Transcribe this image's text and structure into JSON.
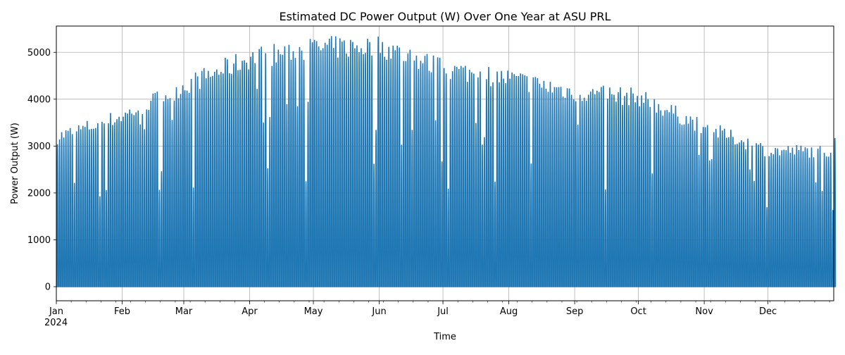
{
  "chart_data": {
    "type": "area",
    "title": "Estimated DC Power Output (W) Over One Year at ASU PRL",
    "xlabel": "Time",
    "ylabel": "Power Output (W)",
    "x_range": [
      "2024-01-01",
      "2024-12-31"
    ],
    "ylim": [
      -300,
      5560
    ],
    "grid": true,
    "color": "#1f77b4",
    "x_tick_labels": [
      "Jan",
      "Feb",
      "Mar",
      "Apr",
      "May",
      "Jun",
      "Jul",
      "Aug",
      "Sep",
      "Oct",
      "Nov",
      "Dec"
    ],
    "x_tick_dates": [
      "2024-01-01",
      "2024-02-01",
      "2024-03-01",
      "2024-04-01",
      "2024-05-01",
      "2024-06-01",
      "2024-07-01",
      "2024-08-01",
      "2024-09-01",
      "2024-10-01",
      "2024-11-01",
      "2024-12-01"
    ],
    "x_year_label": "2024",
    "y_ticks": [
      0,
      1000,
      2000,
      3000,
      4000,
      5000
    ],
    "series": [
      {
        "values_description_free": true,
        "monthly_typical_daily_peak": [
          {
            "month": "Jan",
            "value": 3200
          },
          {
            "month": "Feb",
            "value": 3650
          },
          {
            "month": "Mar",
            "value": 4300
          },
          {
            "month": "Apr",
            "value": 4900
          },
          {
            "month": "May",
            "value": 5100
          },
          {
            "month": "Jun",
            "value": 5150
          },
          {
            "month": "Jul",
            "value": 4650
          },
          {
            "month": "Aug",
            "value": 4450
          },
          {
            "month": "Sep",
            "value": 4150
          },
          {
            "month": "Oct",
            "value": 4050
          },
          {
            "month": "Nov",
            "value": 3400
          },
          {
            "month": "Dec",
            "value": 2900
          }
        ]
      }
    ]
  }
}
